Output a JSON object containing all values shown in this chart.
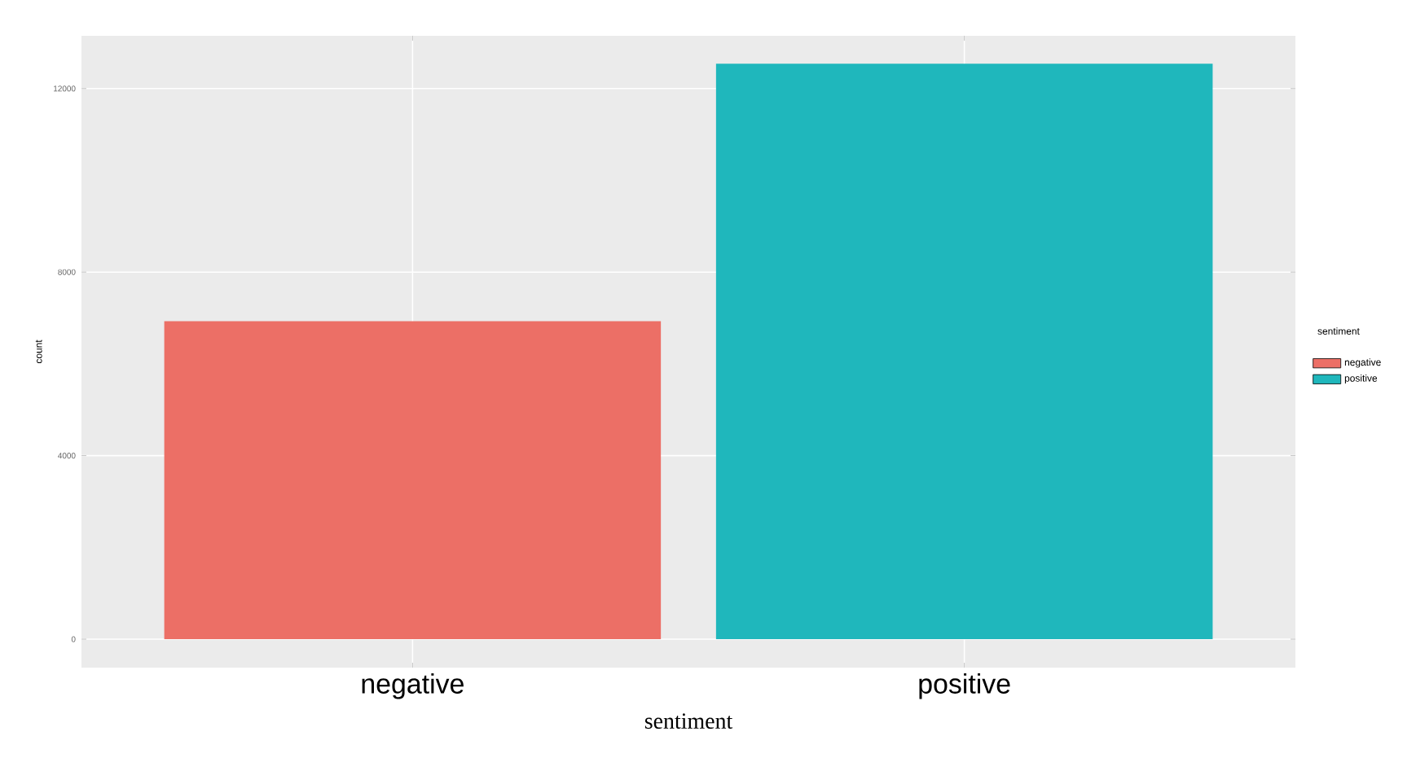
{
  "chart_data": {
    "type": "bar",
    "xlabel": "sentiment",
    "ylabel": "count",
    "legend_title": "sentiment",
    "categories": [
      "negative",
      "positive"
    ],
    "series": [
      {
        "name": "negative",
        "color": "#ec6f66",
        "values": [
          6930,
          null
        ]
      },
      {
        "name": "positive",
        "color": "#1fb7bc",
        "values": [
          null,
          12540
        ]
      }
    ],
    "ylim": [
      -620,
      13150
    ],
    "yticks": [
      0,
      4000,
      8000,
      12000
    ],
    "grid": true,
    "legend": "right"
  }
}
